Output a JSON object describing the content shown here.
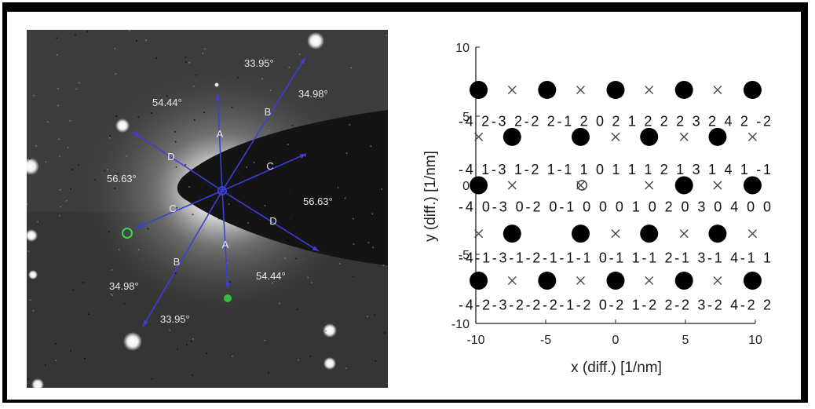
{
  "saed": {
    "angle_labels": [
      {
        "text": "33.95°"
      },
      {
        "text": "34.98°"
      },
      {
        "text": "54.44°"
      },
      {
        "text": "56.63°"
      },
      {
        "text": "56.63°"
      },
      {
        "text": "34.98°"
      },
      {
        "text": "33.95°"
      },
      {
        "text": "54.44°"
      }
    ],
    "direction_labels": [
      "A",
      "B",
      "C",
      "D",
      "A",
      "B",
      "C",
      "D"
    ],
    "line_color": "#3b3fd8",
    "marker_color": "#33dd44"
  },
  "chart_data": {
    "type": "scatter",
    "title": "",
    "xlabel": "x (diff.) [1/nm]",
    "ylabel": "y (diff.) [1/nm]",
    "xlim": [
      -10,
      10
    ],
    "ylim": [
      -10,
      10
    ],
    "xticks": [
      "-10",
      "-5",
      "0",
      "5",
      "10"
    ],
    "yticks": [
      "10",
      "5",
      "0",
      "-5",
      "-10"
    ],
    "series": [
      {
        "marker": "filled-circle",
        "points": [
          [
            -9.8,
            6.9
          ],
          [
            -4.9,
            6.9
          ],
          [
            0,
            6.9
          ],
          [
            4.9,
            6.9
          ],
          [
            9.8,
            6.9
          ],
          [
            -7.4,
            3.5
          ],
          [
            -2.5,
            3.5
          ],
          [
            2.4,
            3.5
          ],
          [
            7.3,
            3.5
          ],
          [
            -9.8,
            0
          ],
          [
            4.9,
            0
          ],
          [
            9.8,
            0
          ],
          [
            -7.4,
            -3.5
          ],
          [
            -2.5,
            -3.5
          ],
          [
            2.4,
            -3.5
          ],
          [
            7.3,
            -3.5
          ],
          [
            -9.8,
            -6.9
          ],
          [
            -4.9,
            -6.9
          ],
          [
            0,
            -6.9
          ],
          [
            4.9,
            -6.9
          ],
          [
            9.8,
            -6.9
          ]
        ]
      },
      {
        "marker": "x",
        "points": [
          [
            -7.4,
            6.9
          ],
          [
            -2.5,
            6.9
          ],
          [
            2.4,
            6.9
          ],
          [
            7.3,
            6.9
          ],
          [
            -9.8,
            3.5
          ],
          [
            0,
            3.5
          ],
          [
            4.9,
            3.5
          ],
          [
            9.8,
            3.5
          ],
          [
            -7.4,
            0
          ],
          [
            -2.5,
            0
          ],
          [
            2.4,
            0
          ],
          [
            7.3,
            0
          ],
          [
            -9.8,
            -3.5
          ],
          [
            0,
            -3.5
          ],
          [
            4.9,
            -3.5
          ],
          [
            9.8,
            -3.5
          ],
          [
            -7.4,
            -6.9
          ],
          [
            -2.5,
            -6.9
          ],
          [
            2.4,
            -6.9
          ],
          [
            7.3,
            -6.9
          ]
        ]
      },
      {
        "marker": "open-circle",
        "points": [
          [
            -2.4,
            0
          ]
        ]
      }
    ],
    "annotations": [
      {
        "y": 4.7,
        "text": "-4 2-3 2-2 2-1 2 0 2 1 2 2 2 3 2 4 2 -2"
      },
      {
        "y": 1.2,
        "text": "-4 1-3 1-2 1-1 1 0 1 1 1 2 1 3 1 4 1 -1"
      },
      {
        "y": -1.5,
        "text": "-4 0-3 0-2 0-1 0 0 0   1 0 2 0 3 0 4 0 0"
      },
      {
        "y": -5.2,
        "text": "-4-1-3-1-2-1-1-1 0-1 1-1 2-1 3-1 4-1 1"
      },
      {
        "y": -8.6,
        "text": "-4-2-3-2-2-2-1-2 0-2 1-2 2-2 3-2 4-2 2"
      }
    ]
  }
}
